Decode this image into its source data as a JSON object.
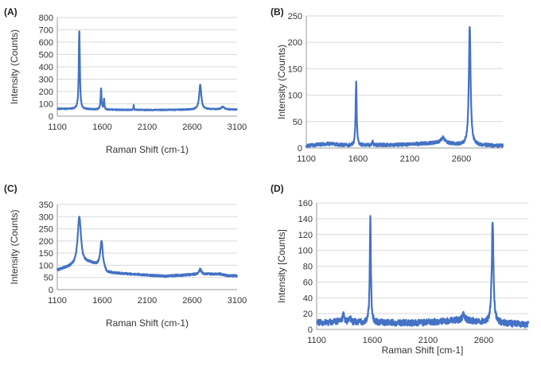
{
  "colors": {
    "series": "#4472C4",
    "grid": "#d9d9d9",
    "axis": "#9a9a9a",
    "text": "#333333"
  },
  "chart_data": [
    {
      "type": "line",
      "panel_label": "(A)",
      "xlabel": "Raman Shift (cm-1)",
      "ylabel": "Intensity (Counts)",
      "xlim": [
        1100,
        3100
      ],
      "ylim": [
        0,
        800
      ],
      "xticks": [
        1100,
        1600,
        2100,
        2600,
        3100
      ],
      "yticks": [
        0,
        100,
        200,
        300,
        400,
        500,
        600,
        700,
        800
      ],
      "grid": true,
      "baseline": [
        [
          1100,
          60
        ],
        [
          1300,
          58
        ],
        [
          1700,
          52
        ],
        [
          2100,
          50
        ],
        [
          2500,
          52
        ],
        [
          2800,
          56
        ],
        [
          3000,
          54
        ]
      ],
      "peaks": [
        {
          "x": 1345,
          "height": 645,
          "width": 7
        },
        {
          "x": 1587,
          "height": 175,
          "width": 6
        },
        {
          "x": 1620,
          "height": 80,
          "width": 5
        },
        {
          "x": 1950,
          "height": 40,
          "width": 3
        },
        {
          "x": 2690,
          "height": 200,
          "width": 14
        },
        {
          "x": 2940,
          "height": 22,
          "width": 18
        }
      ],
      "noise": 4
    },
    {
      "type": "line",
      "panel_label": "(B)",
      "xlabel": "",
      "ylabel": "Intensity (Counts)",
      "xlim": [
        1100,
        3000
      ],
      "ylim": [
        0,
        250
      ],
      "xticks": [
        1100,
        1600,
        2100,
        2600
      ],
      "yticks": [
        0,
        50,
        100,
        150,
        200,
        250
      ],
      "grid": true,
      "baseline": [
        [
          1100,
          4
        ],
        [
          1300,
          8
        ],
        [
          1500,
          5
        ],
        [
          2000,
          6
        ],
        [
          2400,
          10
        ],
        [
          2600,
          6
        ],
        [
          3000,
          4
        ]
      ],
      "peaks": [
        {
          "x": 1582,
          "height": 120,
          "width": 6
        },
        {
          "x": 2680,
          "height": 225,
          "width": 10
        },
        {
          "x": 2420,
          "height": 10,
          "width": 20
        },
        {
          "x": 1740,
          "height": 8,
          "width": 5
        }
      ],
      "noise": 3
    },
    {
      "type": "line",
      "panel_label": "(C)",
      "xlabel": "Raman Shift (cm-1)",
      "ylabel": "Intensity (Counts)",
      "xlim": [
        1100,
        3100
      ],
      "ylim": [
        0,
        350
      ],
      "xticks": [
        1100,
        1600,
        2100,
        2600,
        3100
      ],
      "yticks": [
        0,
        50,
        100,
        150,
        200,
        250,
        300,
        350
      ],
      "grid": true,
      "baseline": [
        [
          1100,
          80
        ],
        [
          1200,
          90
        ],
        [
          1450,
          110
        ],
        [
          1600,
          95
        ],
        [
          1650,
          70
        ],
        [
          2000,
          62
        ],
        [
          2300,
          55
        ],
        [
          2600,
          62
        ],
        [
          2900,
          65
        ],
        [
          3000,
          57
        ]
      ],
      "peaks": [
        {
          "x": 1345,
          "height": 200,
          "width": 22
        },
        {
          "x": 1592,
          "height": 105,
          "width": 16
        },
        {
          "x": 2690,
          "height": 22,
          "width": 15
        }
      ],
      "noise": 4
    },
    {
      "type": "line",
      "panel_label": "(D)",
      "xlabel": "Raman Shift [cm-1]",
      "ylabel": "Intensity [Counts]",
      "xlim": [
        1100,
        3000
      ],
      "ylim": [
        0,
        160
      ],
      "xticks": [
        1100,
        1600,
        2100,
        2600
      ],
      "yticks": [
        0,
        20,
        40,
        60,
        80,
        100,
        120,
        140,
        160
      ],
      "grid": true,
      "baseline": [
        [
          1100,
          8
        ],
        [
          1300,
          10
        ],
        [
          1500,
          9
        ],
        [
          2000,
          8
        ],
        [
          2400,
          12
        ],
        [
          2600,
          9
        ],
        [
          3000,
          6
        ]
      ],
      "peaks": [
        {
          "x": 1582,
          "height": 132,
          "width": 6
        },
        {
          "x": 2680,
          "height": 128,
          "width": 9
        },
        {
          "x": 1340,
          "height": 10,
          "width": 8
        },
        {
          "x": 1400,
          "height": 6,
          "width": 6
        },
        {
          "x": 2420,
          "height": 8,
          "width": 12
        }
      ],
      "noise": 4
    }
  ]
}
